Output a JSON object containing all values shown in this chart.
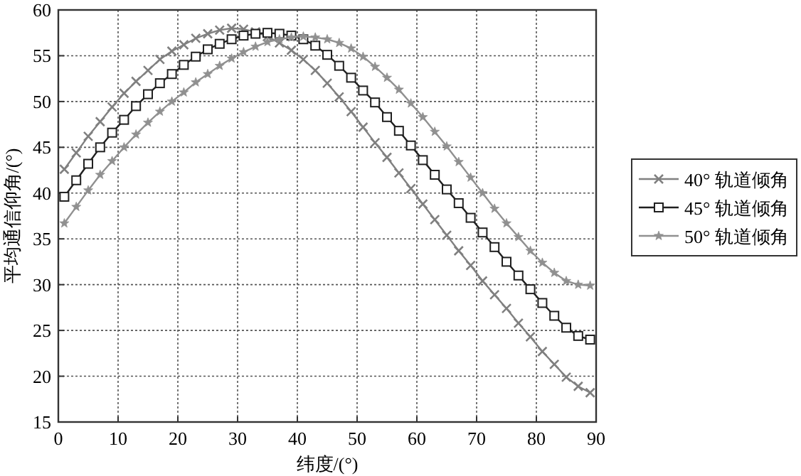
{
  "chart_data": {
    "type": "line",
    "xlabel": "纬度/(°)",
    "ylabel": "平均通信仰角/(°)",
    "x": [
      1,
      3,
      5,
      7,
      9,
      11,
      13,
      15,
      17,
      19,
      21,
      23,
      25,
      27,
      29,
      31,
      33,
      35,
      37,
      39,
      41,
      43,
      45,
      47,
      49,
      51,
      53,
      55,
      57,
      59,
      61,
      63,
      65,
      67,
      69,
      71,
      73,
      75,
      77,
      79,
      81,
      83,
      85,
      87,
      89
    ],
    "xlim": [
      0,
      90
    ],
    "ylim": [
      15,
      60
    ],
    "xticks": [
      0,
      10,
      20,
      30,
      40,
      50,
      60,
      70,
      80,
      90
    ],
    "yticks": [
      15,
      20,
      25,
      30,
      35,
      40,
      45,
      50,
      55,
      60
    ],
    "grid": true,
    "legend": "right",
    "series": [
      {
        "name": "40° 轨道倾角",
        "color": "#808080",
        "marker": "cross",
        "values": [
          42.6,
          44.4,
          46.2,
          47.8,
          49.4,
          50.9,
          52.2,
          53.4,
          54.6,
          55.5,
          56.2,
          56.9,
          57.4,
          57.8,
          58.0,
          57.9,
          57.6,
          57.1,
          56.4,
          55.6,
          54.6,
          53.4,
          52.0,
          50.5,
          48.9,
          47.2,
          45.5,
          43.9,
          42.2,
          40.5,
          38.8,
          37.1,
          35.4,
          33.7,
          32.1,
          30.4,
          28.9,
          27.4,
          25.8,
          24.3,
          22.7,
          21.3,
          19.9,
          18.9,
          18.2
        ]
      },
      {
        "name": "45° 轨道倾角",
        "color": "#202020",
        "marker": "square",
        "values": [
          39.6,
          41.4,
          43.2,
          45.0,
          46.6,
          48.0,
          49.5,
          50.8,
          52.0,
          53.0,
          54.0,
          54.9,
          55.7,
          56.3,
          56.8,
          57.2,
          57.4,
          57.5,
          57.4,
          57.2,
          56.8,
          56.1,
          55.1,
          53.9,
          52.6,
          51.2,
          49.9,
          48.3,
          46.8,
          45.2,
          43.6,
          42.0,
          40.4,
          38.9,
          37.3,
          35.7,
          34.1,
          32.5,
          31.0,
          29.5,
          28.0,
          26.6,
          25.3,
          24.4,
          24.0
        ]
      },
      {
        "name": "50° 轨道倾角",
        "color": "#909090",
        "marker": "star",
        "values": [
          36.7,
          38.5,
          40.3,
          42.0,
          43.5,
          45.0,
          46.4,
          47.7,
          48.9,
          50.0,
          51.0,
          52.1,
          53.0,
          53.9,
          54.7,
          55.4,
          56.0,
          56.5,
          56.8,
          57.0,
          57.1,
          57.0,
          56.8,
          56.4,
          55.8,
          54.9,
          53.8,
          52.6,
          51.3,
          49.8,
          48.3,
          46.7,
          45.1,
          43.4,
          41.7,
          40.0,
          38.3,
          36.7,
          35.2,
          33.7,
          32.4,
          31.3,
          30.4,
          30.0,
          29.9
        ]
      }
    ]
  }
}
